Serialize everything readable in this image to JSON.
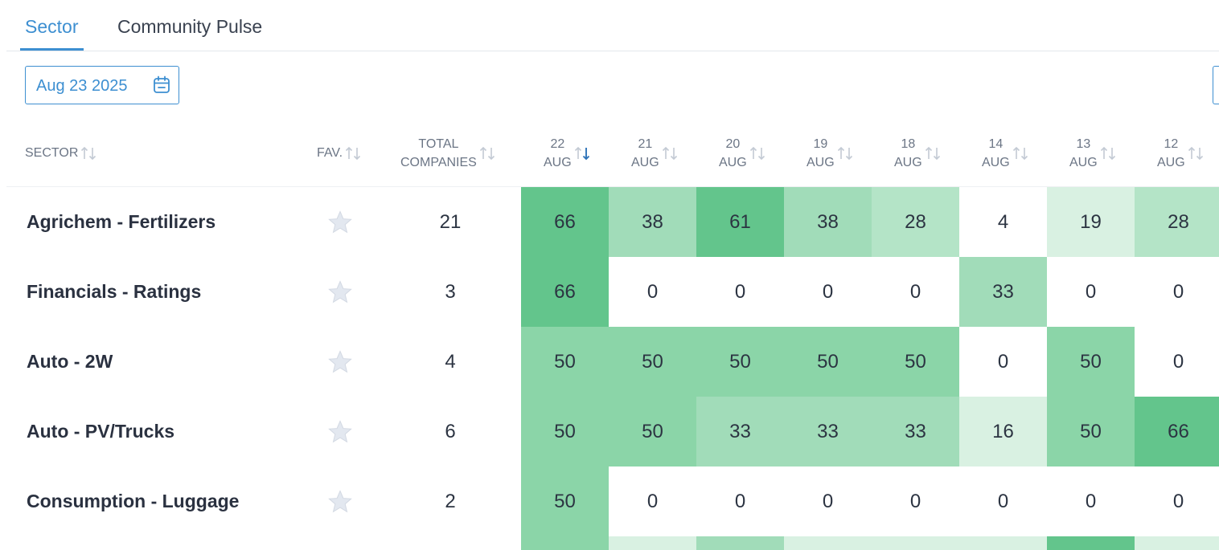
{
  "tabs": [
    {
      "label": "Sector",
      "active": true
    },
    {
      "label": "Community Pulse",
      "active": false
    }
  ],
  "date_picker": {
    "value": "Aug 23 2025"
  },
  "columns": {
    "sector": "SECTOR",
    "fav": "FAV.",
    "total_line1": "TOTAL",
    "total_line2": "COMPANIES",
    "dates": [
      {
        "day": "22",
        "month": "AUG",
        "sorted": true
      },
      {
        "day": "21",
        "month": "AUG",
        "sorted": false
      },
      {
        "day": "20",
        "month": "AUG",
        "sorted": false
      },
      {
        "day": "19",
        "month": "AUG",
        "sorted": false
      },
      {
        "day": "18",
        "month": "AUG",
        "sorted": false
      },
      {
        "day": "14",
        "month": "AUG",
        "sorted": false
      },
      {
        "day": "13",
        "month": "AUG",
        "sorted": false
      },
      {
        "day": "12",
        "month": "AUG",
        "sorted": false
      }
    ]
  },
  "rows": [
    {
      "sector": "Agrichem - Fertilizers",
      "total": "21",
      "values": [
        66,
        38,
        61,
        38,
        28,
        4,
        19,
        28
      ]
    },
    {
      "sector": "Financials - Ratings",
      "total": "3",
      "values": [
        66,
        0,
        0,
        0,
        0,
        33,
        0,
        0
      ]
    },
    {
      "sector": "Auto - 2W",
      "total": "4",
      "values": [
        50,
        50,
        50,
        50,
        50,
        0,
        50,
        0
      ]
    },
    {
      "sector": "Auto - PV/Trucks",
      "total": "6",
      "values": [
        50,
        50,
        33,
        33,
        33,
        16,
        50,
        66
      ]
    },
    {
      "sector": "Consumption - Luggage",
      "total": "2",
      "values": [
        50,
        0,
        0,
        0,
        0,
        0,
        0,
        0
      ]
    }
  ],
  "colors": {
    "accent": "#3d8fd1",
    "heat_high": "#63c58c",
    "heat_mid_high": "#8bd5a8",
    "heat_mid": "#a1dcb9",
    "heat_low_mid": "#b4e4c7",
    "heat_low": "#d9f1e2",
    "star": "#e3e8f0"
  }
}
